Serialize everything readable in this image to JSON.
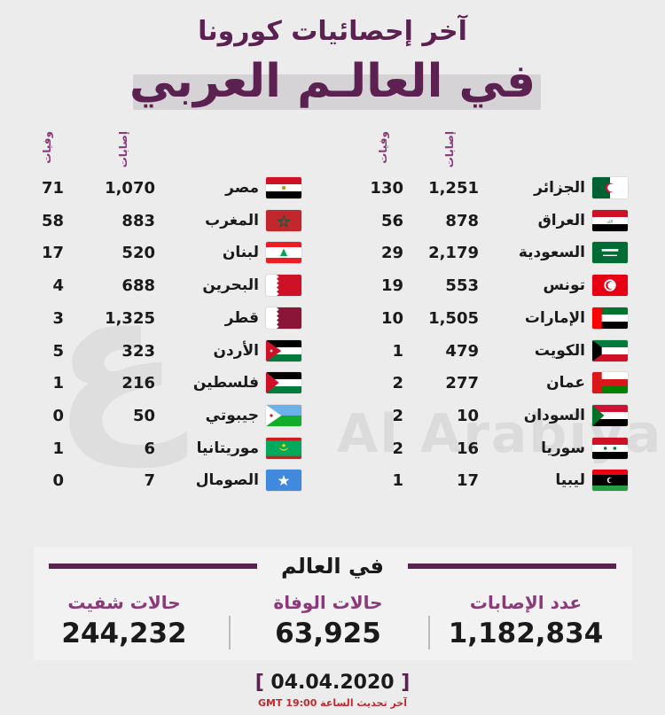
{
  "header": {
    "line1": "آخر إحصائيات كورونا",
    "line2": "في العالـم العربي"
  },
  "columns": {
    "cases": "إصابات",
    "deaths": "وفيات"
  },
  "right_table": [
    {
      "name": "الجزائر",
      "cases": "1,251",
      "deaths": "130",
      "flag": "algeria-flag"
    },
    {
      "name": "العراق",
      "cases": "878",
      "deaths": "56",
      "flag": "iraq-flag"
    },
    {
      "name": "السعودية",
      "cases": "2,179",
      "deaths": "29",
      "flag": "saudi-flag"
    },
    {
      "name": "تونس",
      "cases": "553",
      "deaths": "19",
      "flag": "tunisia-flag"
    },
    {
      "name": "الإمارات",
      "cases": "1,505",
      "deaths": "10",
      "flag": "uae-flag"
    },
    {
      "name": "الكويت",
      "cases": "479",
      "deaths": "1",
      "flag": "kuwait-flag"
    },
    {
      "name": "عمان",
      "cases": "277",
      "deaths": "2",
      "flag": "oman-flag"
    },
    {
      "name": "السودان",
      "cases": "10",
      "deaths": "2",
      "flag": "sudan-flag"
    },
    {
      "name": "سوريا",
      "cases": "16",
      "deaths": "2",
      "flag": "syria-flag"
    },
    {
      "name": "ليبيا",
      "cases": "17",
      "deaths": "1",
      "flag": "libya-flag"
    }
  ],
  "left_table": [
    {
      "name": "مصر",
      "cases": "1,070",
      "deaths": "71",
      "flag": "egypt-flag"
    },
    {
      "name": "المغرب",
      "cases": "883",
      "deaths": "58",
      "flag": "morocco-flag"
    },
    {
      "name": "لبنان",
      "cases": "520",
      "deaths": "17",
      "flag": "lebanon-flag"
    },
    {
      "name": "البحرين",
      "cases": "688",
      "deaths": "4",
      "flag": "bahrain-flag"
    },
    {
      "name": "قطر",
      "cases": "1,325",
      "deaths": "3",
      "flag": "qatar-flag"
    },
    {
      "name": "الأردن",
      "cases": "323",
      "deaths": "5",
      "flag": "jordan-flag"
    },
    {
      "name": "فلسطين",
      "cases": "216",
      "deaths": "1",
      "flag": "palestine-flag"
    },
    {
      "name": "جيبوتي",
      "cases": "50",
      "deaths": "0",
      "flag": "djibouti-flag"
    },
    {
      "name": "موريتانيا",
      "cases": "6",
      "deaths": "1",
      "flag": "mauritania-flag"
    },
    {
      "name": "الصومال",
      "cases": "7",
      "deaths": "0",
      "flag": "somalia-flag"
    }
  ],
  "world": {
    "title": "في العالم",
    "cases_label": "عدد الإصابات",
    "cases_value": "1,182,834",
    "deaths_label": "حالات الوفاة",
    "deaths_value": "63,925",
    "recovered_label": "حالات شفيت",
    "recovered_value": "244,232"
  },
  "footer": {
    "date": "04.04.2020",
    "updated": "آخر تحديث الساعة 19:00 GMT"
  },
  "colors": {
    "brand": "#5b2150",
    "accent": "#8a3a78",
    "note": "#c2282e"
  }
}
